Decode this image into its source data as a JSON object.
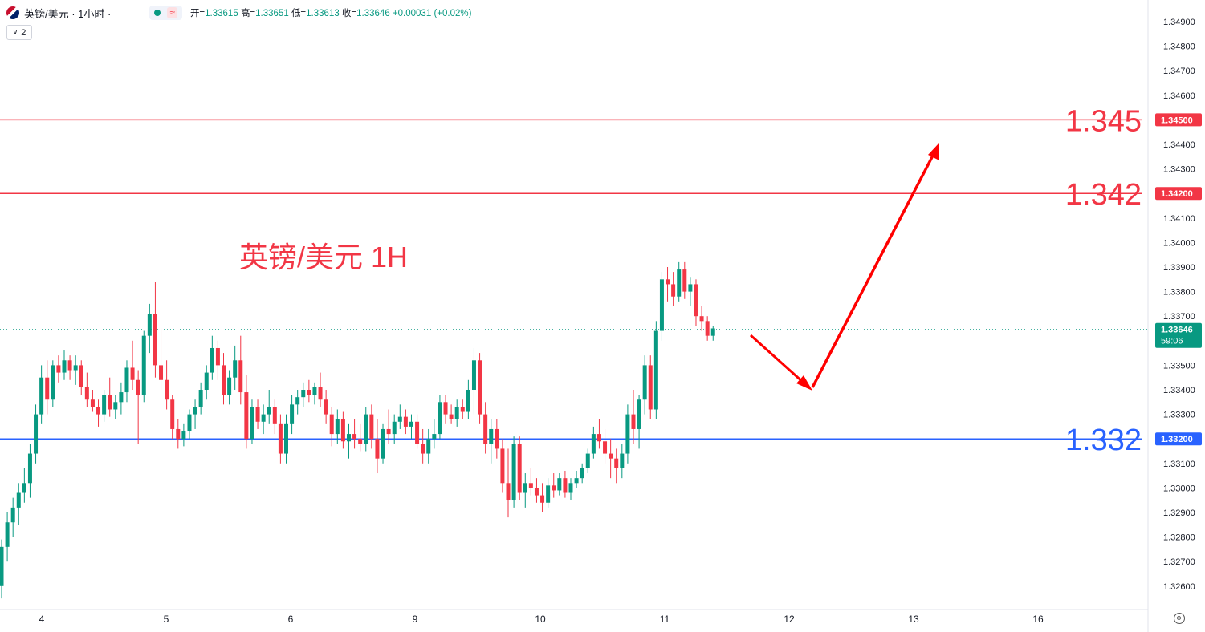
{
  "header": {
    "symbol": "英镑/美元 · 1小时 ·",
    "wave_icon_glyph": "≈",
    "open_label": "开=",
    "open": "1.33615",
    "high_label": "高=",
    "high": "1.33651",
    "low_label": "低=",
    "low": "1.33613",
    "close_label": "收=",
    "close": "1.33646",
    "change": "+0.00031",
    "change_pct": "(+0.02%)",
    "collapse_count": "2",
    "status_color": "#089981"
  },
  "chart_data": {
    "type": "candlestick",
    "title": "英镑/美元 1H",
    "x_ticks": [
      "4",
      "5",
      "6",
      "9",
      "10",
      "11",
      "12",
      "13",
      "16"
    ],
    "y_ticks": [
      "1.32600",
      "1.32700",
      "1.32800",
      "1.32900",
      "1.33000",
      "1.33100",
      "1.33200",
      "1.33300",
      "1.33400",
      "1.33500",
      "1.33600",
      "1.33700",
      "1.33800",
      "1.33900",
      "1.34000",
      "1.34100",
      "1.34200",
      "1.34300",
      "1.34400",
      "1.34500",
      "1.34600",
      "1.34700",
      "1.34800",
      "1.34900"
    ],
    "ylim": [
      1.3253,
      1.3495
    ],
    "last_price": "1.33646",
    "countdown": "59:06",
    "up_color": "#089981",
    "down_color": "#f23645",
    "levels": [
      {
        "value": 1.345,
        "label": "1.345",
        "tag": "1.34500",
        "color": "#f23645"
      },
      {
        "value": 1.342,
        "label": "1.342",
        "tag": "1.34200",
        "color": "#f23645"
      },
      {
        "value": 1.332,
        "label": "1.332",
        "tag": "1.33200",
        "color": "#2962ff"
      }
    ],
    "candles": [
      {
        "o": 1.326,
        "h": 1.3279,
        "l": 1.3255,
        "c": 1.3276
      },
      {
        "o": 1.3276,
        "h": 1.329,
        "l": 1.327,
        "c": 1.3286
      },
      {
        "o": 1.3286,
        "h": 1.3296,
        "l": 1.328,
        "c": 1.3292
      },
      {
        "o": 1.3292,
        "h": 1.3302,
        "l": 1.3285,
        "c": 1.3298
      },
      {
        "o": 1.3298,
        "h": 1.3308,
        "l": 1.3294,
        "c": 1.3302
      },
      {
        "o": 1.3302,
        "h": 1.3318,
        "l": 1.3296,
        "c": 1.3314
      },
      {
        "o": 1.3314,
        "h": 1.3334,
        "l": 1.331,
        "c": 1.333
      },
      {
        "o": 1.333,
        "h": 1.335,
        "l": 1.3326,
        "c": 1.3345
      },
      {
        "o": 1.3345,
        "h": 1.3352,
        "l": 1.333,
        "c": 1.3336
      },
      {
        "o": 1.3336,
        "h": 1.3352,
        "l": 1.3333,
        "c": 1.335
      },
      {
        "o": 1.335,
        "h": 1.3354,
        "l": 1.3343,
        "c": 1.3347
      },
      {
        "o": 1.3347,
        "h": 1.3356,
        "l": 1.3344,
        "c": 1.3352
      },
      {
        "o": 1.3352,
        "h": 1.3354,
        "l": 1.3344,
        "c": 1.3348
      },
      {
        "o": 1.3348,
        "h": 1.3354,
        "l": 1.3342,
        "c": 1.335
      },
      {
        "o": 1.335,
        "h": 1.3352,
        "l": 1.3338,
        "c": 1.3341
      },
      {
        "o": 1.3341,
        "h": 1.3347,
        "l": 1.3333,
        "c": 1.3336
      },
      {
        "o": 1.3336,
        "h": 1.334,
        "l": 1.3331,
        "c": 1.3333
      },
      {
        "o": 1.3333,
        "h": 1.3336,
        "l": 1.3325,
        "c": 1.333
      },
      {
        "o": 1.333,
        "h": 1.334,
        "l": 1.3327,
        "c": 1.3338
      },
      {
        "o": 1.3338,
        "h": 1.3345,
        "l": 1.3329,
        "c": 1.3332
      },
      {
        "o": 1.3332,
        "h": 1.3338,
        "l": 1.3328,
        "c": 1.3335
      },
      {
        "o": 1.3335,
        "h": 1.3343,
        "l": 1.333,
        "c": 1.3339
      },
      {
        "o": 1.3339,
        "h": 1.3352,
        "l": 1.3335,
        "c": 1.3349
      },
      {
        "o": 1.3349,
        "h": 1.336,
        "l": 1.334,
        "c": 1.3344
      },
      {
        "o": 1.3344,
        "h": 1.3348,
        "l": 1.3318,
        "c": 1.3338
      },
      {
        "o": 1.3338,
        "h": 1.3364,
        "l": 1.3335,
        "c": 1.3362
      },
      {
        "o": 1.3362,
        "h": 1.3375,
        "l": 1.3355,
        "c": 1.3371
      },
      {
        "o": 1.3371,
        "h": 1.3384,
        "l": 1.3345,
        "c": 1.335
      },
      {
        "o": 1.335,
        "h": 1.3365,
        "l": 1.334,
        "c": 1.3344
      },
      {
        "o": 1.3344,
        "h": 1.3352,
        "l": 1.3332,
        "c": 1.3336
      },
      {
        "o": 1.3336,
        "h": 1.3338,
        "l": 1.332,
        "c": 1.3324
      },
      {
        "o": 1.3324,
        "h": 1.3328,
        "l": 1.3316,
        "c": 1.332
      },
      {
        "o": 1.332,
        "h": 1.3326,
        "l": 1.3317,
        "c": 1.3323
      },
      {
        "o": 1.3323,
        "h": 1.3332,
        "l": 1.332,
        "c": 1.333
      },
      {
        "o": 1.333,
        "h": 1.3336,
        "l": 1.3324,
        "c": 1.3333
      },
      {
        "o": 1.3333,
        "h": 1.3343,
        "l": 1.333,
        "c": 1.334
      },
      {
        "o": 1.334,
        "h": 1.335,
        "l": 1.3336,
        "c": 1.3347
      },
      {
        "o": 1.3347,
        "h": 1.3362,
        "l": 1.3344,
        "c": 1.3357
      },
      {
        "o": 1.3357,
        "h": 1.336,
        "l": 1.3344,
        "c": 1.335
      },
      {
        "o": 1.335,
        "h": 1.3355,
        "l": 1.3334,
        "c": 1.3338
      },
      {
        "o": 1.3338,
        "h": 1.3348,
        "l": 1.3334,
        "c": 1.3345
      },
      {
        "o": 1.3345,
        "h": 1.3358,
        "l": 1.334,
        "c": 1.3352
      },
      {
        "o": 1.3352,
        "h": 1.3362,
        "l": 1.3334,
        "c": 1.3339
      },
      {
        "o": 1.3339,
        "h": 1.3346,
        "l": 1.3316,
        "c": 1.332
      },
      {
        "o": 1.332,
        "h": 1.3336,
        "l": 1.3318,
        "c": 1.3333
      },
      {
        "o": 1.3333,
        "h": 1.3336,
        "l": 1.3324,
        "c": 1.3327
      },
      {
        "o": 1.3327,
        "h": 1.3334,
        "l": 1.3322,
        "c": 1.333
      },
      {
        "o": 1.333,
        "h": 1.334,
        "l": 1.3326,
        "c": 1.3333
      },
      {
        "o": 1.3333,
        "h": 1.3336,
        "l": 1.3322,
        "c": 1.3326
      },
      {
        "o": 1.3326,
        "h": 1.333,
        "l": 1.331,
        "c": 1.3314
      },
      {
        "o": 1.3314,
        "h": 1.333,
        "l": 1.331,
        "c": 1.3326
      },
      {
        "o": 1.3326,
        "h": 1.3338,
        "l": 1.3322,
        "c": 1.3334
      },
      {
        "o": 1.3334,
        "h": 1.334,
        "l": 1.333,
        "c": 1.3337
      },
      {
        "o": 1.3337,
        "h": 1.3343,
        "l": 1.3333,
        "c": 1.334
      },
      {
        "o": 1.334,
        "h": 1.3344,
        "l": 1.3335,
        "c": 1.3338
      },
      {
        "o": 1.3338,
        "h": 1.3343,
        "l": 1.3334,
        "c": 1.3341
      },
      {
        "o": 1.3341,
        "h": 1.3347,
        "l": 1.3333,
        "c": 1.3336
      },
      {
        "o": 1.3336,
        "h": 1.334,
        "l": 1.3326,
        "c": 1.333
      },
      {
        "o": 1.333,
        "h": 1.3333,
        "l": 1.3317,
        "c": 1.3322
      },
      {
        "o": 1.3322,
        "h": 1.3332,
        "l": 1.3318,
        "c": 1.3328
      },
      {
        "o": 1.3328,
        "h": 1.3331,
        "l": 1.3316,
        "c": 1.3319
      },
      {
        "o": 1.3319,
        "h": 1.3326,
        "l": 1.3312,
        "c": 1.3322
      },
      {
        "o": 1.3322,
        "h": 1.3328,
        "l": 1.3316,
        "c": 1.332
      },
      {
        "o": 1.332,
        "h": 1.3326,
        "l": 1.3315,
        "c": 1.3318
      },
      {
        "o": 1.3318,
        "h": 1.3333,
        "l": 1.3315,
        "c": 1.333
      },
      {
        "o": 1.333,
        "h": 1.3334,
        "l": 1.3316,
        "c": 1.332
      },
      {
        "o": 1.332,
        "h": 1.3328,
        "l": 1.3306,
        "c": 1.3312
      },
      {
        "o": 1.3312,
        "h": 1.3326,
        "l": 1.331,
        "c": 1.3324
      },
      {
        "o": 1.3324,
        "h": 1.3332,
        "l": 1.3318,
        "c": 1.3322
      },
      {
        "o": 1.3322,
        "h": 1.333,
        "l": 1.3318,
        "c": 1.3327
      },
      {
        "o": 1.3327,
        "h": 1.3334,
        "l": 1.3324,
        "c": 1.3329
      },
      {
        "o": 1.3329,
        "h": 1.3332,
        "l": 1.3322,
        "c": 1.3325
      },
      {
        "o": 1.3325,
        "h": 1.333,
        "l": 1.332,
        "c": 1.3327
      },
      {
        "o": 1.3327,
        "h": 1.333,
        "l": 1.3316,
        "c": 1.3318
      },
      {
        "o": 1.3318,
        "h": 1.3324,
        "l": 1.331,
        "c": 1.3314
      },
      {
        "o": 1.3314,
        "h": 1.3324,
        "l": 1.331,
        "c": 1.332
      },
      {
        "o": 1.332,
        "h": 1.3328,
        "l": 1.3316,
        "c": 1.3322
      },
      {
        "o": 1.3322,
        "h": 1.3338,
        "l": 1.332,
        "c": 1.3335
      },
      {
        "o": 1.3335,
        "h": 1.3338,
        "l": 1.3326,
        "c": 1.333
      },
      {
        "o": 1.333,
        "h": 1.3334,
        "l": 1.3326,
        "c": 1.3328
      },
      {
        "o": 1.3328,
        "h": 1.3336,
        "l": 1.3325,
        "c": 1.3333
      },
      {
        "o": 1.3333,
        "h": 1.3336,
        "l": 1.3328,
        "c": 1.3331
      },
      {
        "o": 1.3331,
        "h": 1.3344,
        "l": 1.3328,
        "c": 1.334
      },
      {
        "o": 1.334,
        "h": 1.3357,
        "l": 1.333,
        "c": 1.3352
      },
      {
        "o": 1.3352,
        "h": 1.3355,
        "l": 1.3326,
        "c": 1.333
      },
      {
        "o": 1.333,
        "h": 1.3335,
        "l": 1.3314,
        "c": 1.3318
      },
      {
        "o": 1.3318,
        "h": 1.3328,
        "l": 1.331,
        "c": 1.3324
      },
      {
        "o": 1.3324,
        "h": 1.3328,
        "l": 1.3312,
        "c": 1.3316
      },
      {
        "o": 1.3316,
        "h": 1.332,
        "l": 1.3298,
        "c": 1.3302
      },
      {
        "o": 1.3302,
        "h": 1.3316,
        "l": 1.3288,
        "c": 1.3295
      },
      {
        "o": 1.3295,
        "h": 1.3321,
        "l": 1.3292,
        "c": 1.3318
      },
      {
        "o": 1.3318,
        "h": 1.3321,
        "l": 1.3295,
        "c": 1.3298
      },
      {
        "o": 1.3298,
        "h": 1.3306,
        "l": 1.3292,
        "c": 1.3302
      },
      {
        "o": 1.3302,
        "h": 1.3308,
        "l": 1.3297,
        "c": 1.33
      },
      {
        "o": 1.33,
        "h": 1.3304,
        "l": 1.3294,
        "c": 1.3297
      },
      {
        "o": 1.3297,
        "h": 1.3302,
        "l": 1.329,
        "c": 1.3294
      },
      {
        "o": 1.3294,
        "h": 1.3304,
        "l": 1.3292,
        "c": 1.3301
      },
      {
        "o": 1.3301,
        "h": 1.3306,
        "l": 1.3296,
        "c": 1.3299
      },
      {
        "o": 1.3299,
        "h": 1.3306,
        "l": 1.3297,
        "c": 1.3304
      },
      {
        "o": 1.3304,
        "h": 1.3307,
        "l": 1.3296,
        "c": 1.3298
      },
      {
        "o": 1.3298,
        "h": 1.3304,
        "l": 1.3295,
        "c": 1.3302
      },
      {
        "o": 1.3302,
        "h": 1.3307,
        "l": 1.33,
        "c": 1.3304
      },
      {
        "o": 1.3304,
        "h": 1.331,
        "l": 1.3302,
        "c": 1.3308
      },
      {
        "o": 1.3308,
        "h": 1.3316,
        "l": 1.3306,
        "c": 1.3314
      },
      {
        "o": 1.3314,
        "h": 1.3325,
        "l": 1.3312,
        "c": 1.3322
      },
      {
        "o": 1.3322,
        "h": 1.3328,
        "l": 1.3316,
        "c": 1.3319
      },
      {
        "o": 1.3319,
        "h": 1.3324,
        "l": 1.331,
        "c": 1.3314
      },
      {
        "o": 1.3314,
        "h": 1.332,
        "l": 1.3304,
        "c": 1.3312
      },
      {
        "o": 1.3312,
        "h": 1.3316,
        "l": 1.3302,
        "c": 1.3308
      },
      {
        "o": 1.3308,
        "h": 1.3318,
        "l": 1.3304,
        "c": 1.3314
      },
      {
        "o": 1.3314,
        "h": 1.3334,
        "l": 1.331,
        "c": 1.333
      },
      {
        "o": 1.333,
        "h": 1.334,
        "l": 1.3318,
        "c": 1.3324
      },
      {
        "o": 1.3324,
        "h": 1.3338,
        "l": 1.3316,
        "c": 1.3336
      },
      {
        "o": 1.3336,
        "h": 1.3354,
        "l": 1.333,
        "c": 1.335
      },
      {
        "o": 1.335,
        "h": 1.3354,
        "l": 1.3328,
        "c": 1.3332
      },
      {
        "o": 1.3332,
        "h": 1.3368,
        "l": 1.3328,
        "c": 1.3364
      },
      {
        "o": 1.3364,
        "h": 1.3388,
        "l": 1.336,
        "c": 1.3385
      },
      {
        "o": 1.3385,
        "h": 1.339,
        "l": 1.3376,
        "c": 1.3383
      },
      {
        "o": 1.3383,
        "h": 1.3388,
        "l": 1.3374,
        "c": 1.3378
      },
      {
        "o": 1.3378,
        "h": 1.3392,
        "l": 1.3376,
        "c": 1.3389
      },
      {
        "o": 1.3389,
        "h": 1.3392,
        "l": 1.3377,
        "c": 1.338
      },
      {
        "o": 1.338,
        "h": 1.3386,
        "l": 1.3374,
        "c": 1.3383
      },
      {
        "o": 1.3383,
        "h": 1.3385,
        "l": 1.3366,
        "c": 1.337
      },
      {
        "o": 1.337,
        "h": 1.3374,
        "l": 1.3364,
        "c": 1.3368
      },
      {
        "o": 1.3368,
        "h": 1.337,
        "l": 1.336,
        "c": 1.3362
      },
      {
        "o": 1.3362,
        "h": 1.3366,
        "l": 1.336,
        "c": 1.3365
      }
    ]
  }
}
